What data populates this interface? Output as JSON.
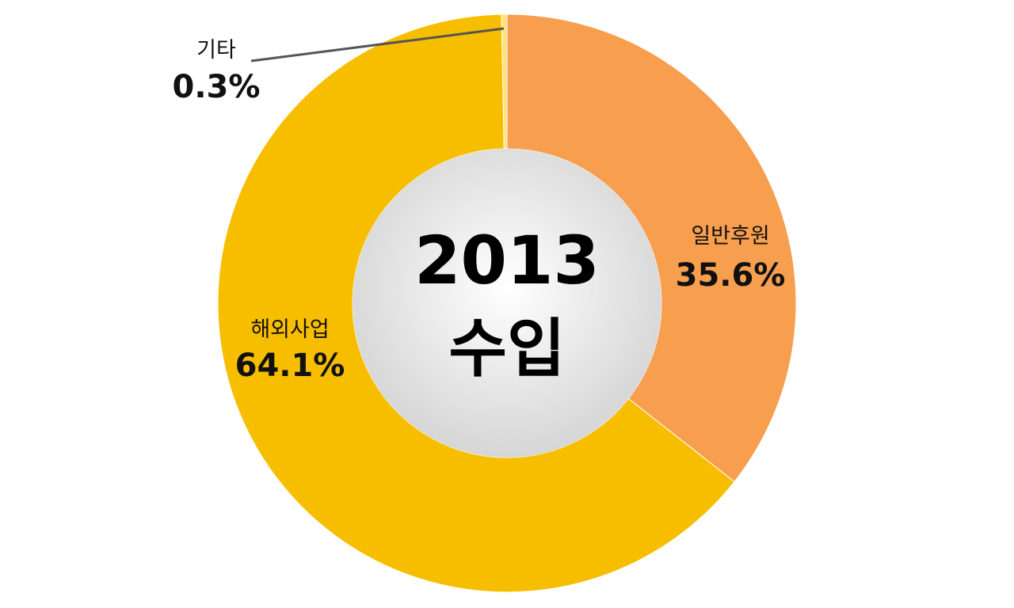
{
  "chart_data": {
    "type": "pie",
    "variant": "donut",
    "center_title_line1": "2013",
    "center_title_line2": "수입",
    "slices": [
      {
        "label": "일반후원",
        "value": 35.6,
        "value_label": "35.6%",
        "color": "#F79E4F"
      },
      {
        "label": "해외사업",
        "value": 64.1,
        "value_label": "64.1%",
        "color": "#F7BE00"
      },
      {
        "label": "기타",
        "value": 0.3,
        "value_label": "0.3%",
        "color": "#FFE27A"
      }
    ],
    "start_angle": "12 o'clock",
    "direction": "clockwise",
    "leader_line_color": "#555555",
    "center_fill": "#EFEFEF"
  }
}
